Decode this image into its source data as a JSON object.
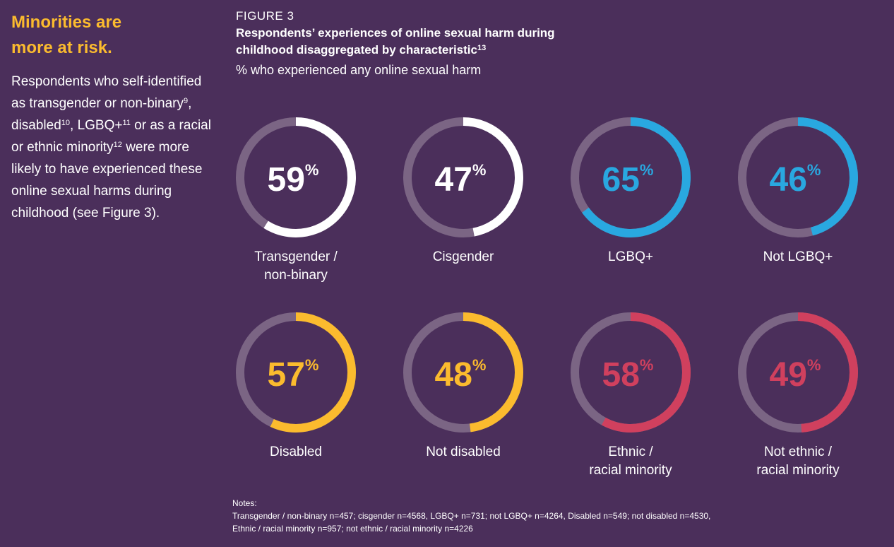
{
  "sidebar": {
    "heading_line1": "Minorities are",
    "heading_line2": "more at risk.",
    "body_parts": [
      "Respondents who self-identified as transgender or non-binary",
      "9",
      ", disabled",
      "10",
      ", LGBQ+",
      "11",
      " or as a racial or ethnic minority",
      "12",
      " were more likely to have experienced these online sexual harms during childhood (see Figure 3)."
    ]
  },
  "chart_data": {
    "type": "donut",
    "figure_label": "FIGURE 3",
    "title": "Respondents’ experiences of online sexual harm during childhood disaggregated by characteristic",
    "title_footnote": "13",
    "subtitle": "% who experienced any online sexual harm",
    "track_color": "#7b6584",
    "items": [
      {
        "label": [
          "Transgender /",
          "non-binary"
        ],
        "value": 59,
        "color": "#ffffff"
      },
      {
        "label": [
          "Cisgender"
        ],
        "value": 47,
        "color": "#ffffff"
      },
      {
        "label": [
          "LGBQ+"
        ],
        "value": 65,
        "color": "#29a8e0"
      },
      {
        "label": [
          "Not LGBQ+"
        ],
        "value": 46,
        "color": "#29a8e0"
      },
      {
        "label": [
          "Disabled"
        ],
        "value": 57,
        "color": "#fbbb2e"
      },
      {
        "label": [
          "Not disabled"
        ],
        "value": 48,
        "color": "#fbbb2e"
      },
      {
        "label": [
          "Ethnic /",
          "racial minority"
        ],
        "value": 58,
        "color": "#d0405e"
      },
      {
        "label": [
          "Not ethnic /",
          "racial minority"
        ],
        "value": 49,
        "color": "#d0405e"
      }
    ]
  },
  "notes": {
    "heading": "Notes:",
    "line1": "Transgender / non-binary n=457; cisgender n=4568, LGBQ+ n=731; not LGBQ+ n=4264, Disabled n=549; not disabled n=4530,",
    "line2": "Ethnic / racial minority n=957; not ethnic / racial minority n=4226"
  }
}
